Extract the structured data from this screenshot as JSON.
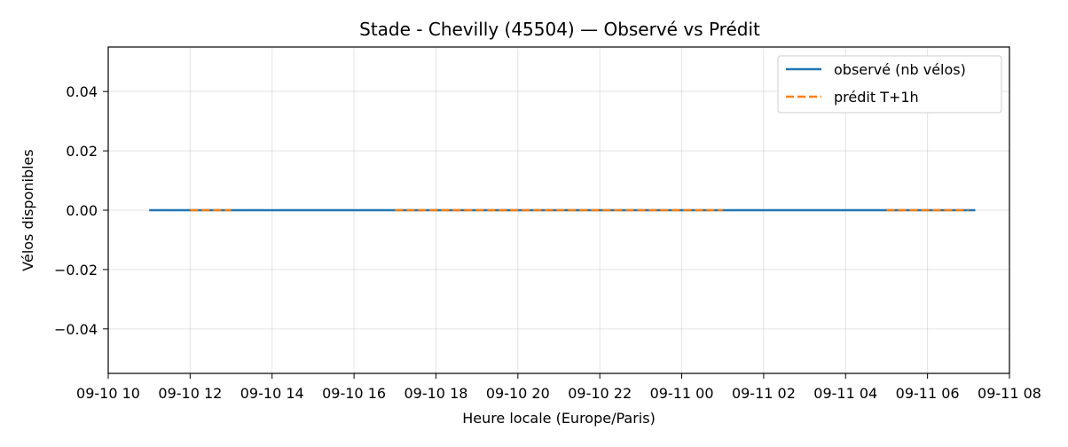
{
  "chart_data": {
    "type": "line",
    "title": "Stade - Chevilly (45504) — Observé vs Prédit",
    "xlabel": "Heure locale (Europe/Paris)",
    "ylabel": "Vélos disponibles",
    "xlim": [
      "2023-09-10 10:00",
      "2023-09-11 08:00"
    ],
    "ylim": [
      -0.055,
      0.055
    ],
    "x_ticks": [
      "09-10 10",
      "09-10 12",
      "09-10 14",
      "09-10 16",
      "09-10 18",
      "09-10 20",
      "09-10 22",
      "09-11 00",
      "09-11 02",
      "09-11 04",
      "09-11 06",
      "09-11 08"
    ],
    "y_ticks": [
      -0.04,
      -0.02,
      0.0,
      0.02,
      0.04
    ],
    "y_tick_labels": [
      "−0.04",
      "−0.02",
      "0.00",
      "0.02",
      "0.04"
    ],
    "grid": true,
    "legend_position": "top-right",
    "series": [
      {
        "name": "observé (nb vélos)",
        "color": "#1f77b4",
        "style": "solid",
        "points": [
          {
            "x": "2023-09-10 11:00",
            "y": 0.0
          },
          {
            "x": "2023-09-11 07:10",
            "y": 0.0
          }
        ]
      },
      {
        "name": "prédit T+1h",
        "color": "#ff7f0e",
        "style": "dashed",
        "segments": [
          [
            {
              "x": "2023-09-10 12:00",
              "y": 0.0
            },
            {
              "x": "2023-09-10 13:00",
              "y": 0.0
            }
          ],
          [
            {
              "x": "2023-09-10 17:00",
              "y": 0.0
            },
            {
              "x": "2023-09-11 01:00",
              "y": 0.0
            }
          ],
          [
            {
              "x": "2023-09-11 05:00",
              "y": 0.0
            },
            {
              "x": "2023-09-11 07:00",
              "y": 0.0
            }
          ]
        ]
      }
    ]
  }
}
